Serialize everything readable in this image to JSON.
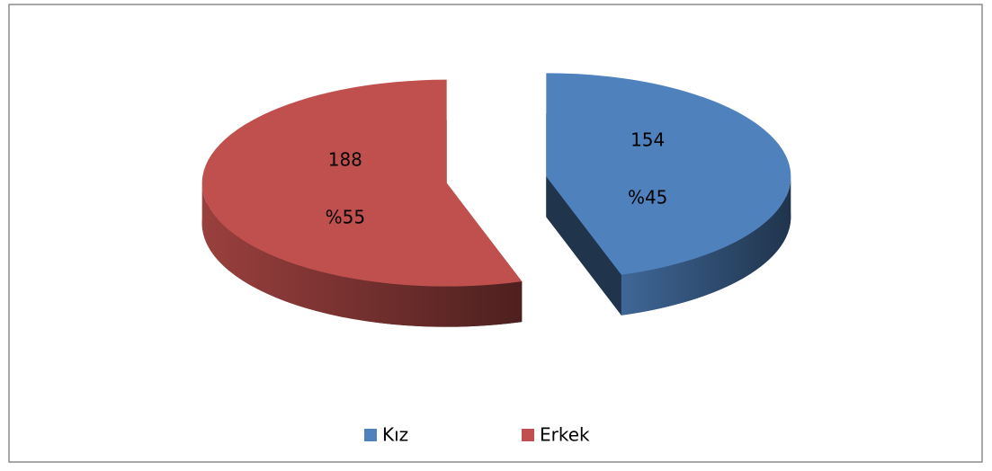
{
  "chart_data": {
    "type": "pie3d",
    "categories": [
      "Kız",
      "Erkek"
    ],
    "values": [
      154,
      188
    ],
    "percent_labels": [
      "%45",
      "%55"
    ],
    "colors": [
      "#4f81bd",
      "#c0504d"
    ],
    "legend": "bottom"
  }
}
